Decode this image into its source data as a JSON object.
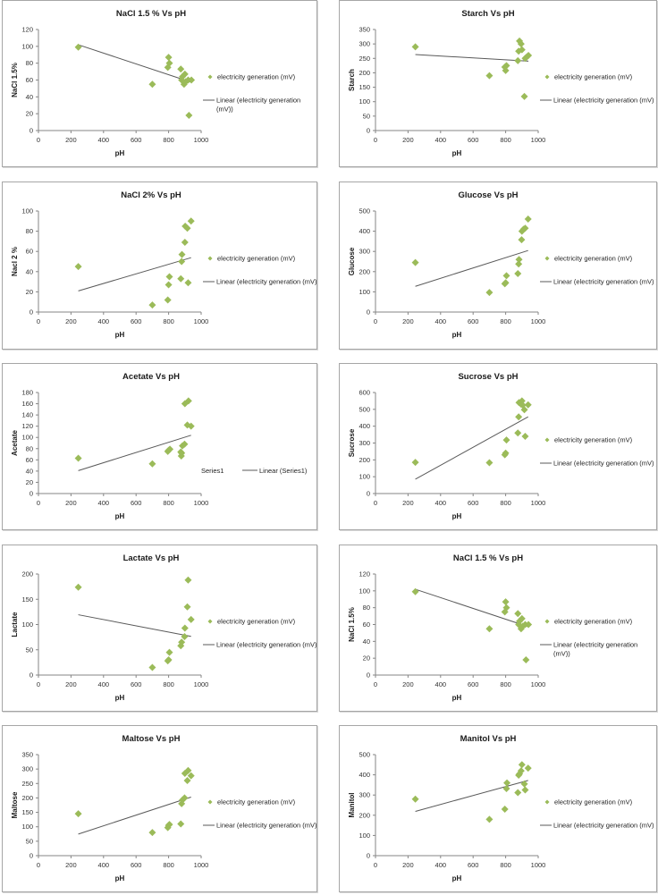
{
  "colors": {
    "marker": "#9bbb59",
    "trendline": "#595959",
    "axis": "#868686"
  },
  "chart_data": [
    {
      "id": "nacl15-a",
      "type": "scatter",
      "title": "NaCl 1.5 % Vs pH",
      "xlabel": "pH",
      "ylabel": "NaCl 1.5%",
      "xlim": [
        0,
        1000
      ],
      "ylim": [
        0,
        120
      ],
      "xticks": [
        0,
        200,
        400,
        600,
        800,
        1000
      ],
      "yticks": [
        0,
        20,
        40,
        60,
        80,
        100,
        120
      ],
      "grid": false,
      "legend_position": "right",
      "legend": [
        "electricity generation (mV)",
        "Linear (electricity generation (mV))"
      ],
      "legend_wrap": true,
      "series": [
        {
          "name": "electricity generation (mV)",
          "x": [
            245,
            700,
            795,
            800,
            805,
            875,
            880,
            885,
            895,
            900,
            905,
            920,
            925,
            940
          ],
          "y": [
            99,
            55,
            75,
            87,
            80,
            73,
            60,
            64,
            55,
            67,
            58,
            60,
            18,
            60
          ]
        }
      ],
      "trendline": "linear"
    },
    {
      "id": "starch",
      "type": "scatter",
      "title": "Starch Vs pH",
      "xlabel": "pH",
      "ylabel": "Starch",
      "xlim": [
        0,
        1000
      ],
      "ylim": [
        0,
        350
      ],
      "xticks": [
        0,
        200,
        400,
        600,
        800,
        1000
      ],
      "yticks": [
        0,
        50,
        100,
        150,
        200,
        250,
        300,
        350
      ],
      "grid": false,
      "legend_position": "right",
      "legend": [
        "electricity generation (mV)",
        "Linear (electricity generation (mV) )"
      ],
      "legend_wrap": false,
      "series": [
        {
          "name": "electricity generation (mV)",
          "x": [
            245,
            700,
            795,
            800,
            805,
            875,
            880,
            885,
            895,
            900,
            915,
            920,
            930,
            940
          ],
          "y": [
            290,
            190,
            220,
            208,
            225,
            242,
            275,
            310,
            300,
            280,
            118,
            250,
            255,
            260
          ]
        }
      ],
      "trendline": "linear"
    },
    {
      "id": "nacl2",
      "type": "scatter",
      "title": "NaCl 2% Vs pH",
      "xlabel": "pH",
      "ylabel": "Nacl  2 %",
      "xlim": [
        0,
        1000
      ],
      "ylim": [
        0,
        100
      ],
      "xticks": [
        0,
        200,
        400,
        600,
        800,
        1000
      ],
      "yticks": [
        0,
        20,
        40,
        60,
        80,
        100
      ],
      "grid": false,
      "legend_position": "right",
      "legend": [
        "electricity generation (mV)",
        "Linear (electricity generation (mV) )"
      ],
      "legend_wrap": false,
      "series": [
        {
          "name": "electricity generation (mV)",
          "x": [
            245,
            700,
            795,
            800,
            805,
            875,
            880,
            882,
            900,
            902,
            915,
            920,
            938
          ],
          "y": [
            45,
            7,
            12,
            27,
            35,
            33,
            50,
            57,
            69,
            85,
            83,
            29,
            90
          ]
        }
      ],
      "trendline": "linear"
    },
    {
      "id": "glucose",
      "type": "scatter",
      "title": "Glucose Vs pH",
      "xlabel": "pH",
      "ylabel": "Glucose",
      "xlim": [
        0,
        1000
      ],
      "ylim": [
        0,
        500
      ],
      "xticks": [
        0,
        200,
        400,
        600,
        800,
        1000
      ],
      "yticks": [
        0,
        100,
        200,
        300,
        400,
        500
      ],
      "grid": false,
      "legend_position": "right",
      "legend": [
        "electricity generation (mV)",
        "Linear (electricity generation (mV) )"
      ],
      "legend_wrap": false,
      "series": [
        {
          "name": "electricity generation (mV)",
          "x": [
            245,
            700,
            795,
            800,
            805,
            875,
            880,
            882,
            898,
            900,
            910,
            920,
            938
          ],
          "y": [
            245,
            97,
            140,
            145,
            180,
            190,
            238,
            260,
            358,
            400,
            410,
            415,
            460
          ]
        }
      ],
      "trendline": "linear"
    },
    {
      "id": "acetate",
      "type": "scatter",
      "title": "Acetate Vs pH",
      "xlabel": "pH",
      "ylabel": "Acetate",
      "xlim": [
        0,
        1000
      ],
      "ylim": [
        0,
        180
      ],
      "xticks": [
        0,
        200,
        400,
        600,
        800,
        1000
      ],
      "yticks": [
        0,
        20,
        40,
        60,
        80,
        100,
        120,
        140,
        160,
        180
      ],
      "grid": false,
      "legend_position": "right",
      "legend": [
        "Series1",
        "Linear (Series1)"
      ],
      "legend_wrap": false,
      "series": [
        {
          "name": "Series1",
          "x": [
            245,
            700,
            795,
            800,
            808,
            875,
            878,
            880,
            885,
            898,
            900,
            915,
            922,
            938
          ],
          "y": [
            63,
            53,
            75,
            77,
            79,
            74,
            67,
            72,
            85,
            88,
            160,
            122,
            165,
            120
          ]
        }
      ],
      "trendline": "linear"
    },
    {
      "id": "sucrose",
      "type": "scatter",
      "title": "Sucrose Vs pH",
      "xlabel": "pH",
      "ylabel": "Sucrose",
      "xlim": [
        0,
        1000
      ],
      "ylim": [
        0,
        600
      ],
      "xticks": [
        0,
        200,
        400,
        600,
        800,
        1000
      ],
      "yticks": [
        0,
        100,
        200,
        300,
        400,
        500,
        600
      ],
      "grid": false,
      "legend_position": "right",
      "legend": [
        "electricity generation (mV)",
        "Linear (electricity generation (mV) )"
      ],
      "legend_wrap": false,
      "series": [
        {
          "name": "electricity generation (mV)",
          "x": [
            245,
            700,
            795,
            800,
            805,
            875,
            880,
            882,
            895,
            900,
            905,
            915,
            920,
            938
          ],
          "y": [
            185,
            183,
            230,
            240,
            318,
            360,
            455,
            540,
            530,
            550,
            525,
            498,
            340,
            527
          ]
        }
      ],
      "trendline": "linear"
    },
    {
      "id": "lactate",
      "type": "scatter",
      "title": "Lactate Vs pH",
      "xlabel": "pH",
      "ylabel": "Lactate",
      "xlim": [
        0,
        1000
      ],
      "ylim": [
        0,
        200
      ],
      "xticks": [
        0,
        200,
        400,
        600,
        800,
        1000
      ],
      "yticks": [
        0,
        50,
        100,
        150,
        200
      ],
      "grid": false,
      "legend_position": "right",
      "legend": [
        "electricity generation (mV)",
        "Linear (electricity generation (mV) )"
      ],
      "legend_wrap": false,
      "series": [
        {
          "name": "electricity generation (mV)",
          "x": [
            245,
            700,
            795,
            800,
            805,
            875,
            880,
            898,
            900,
            915,
            920,
            938
          ],
          "y": [
            174,
            15,
            28,
            30,
            45,
            58,
            65,
            76,
            93,
            135,
            188,
            110
          ]
        }
      ],
      "trendline": "linear"
    },
    {
      "id": "nacl15-b",
      "type": "scatter",
      "title": "NaCl 1.5 % Vs pH",
      "xlabel": "pH",
      "ylabel": "NaCl 1.5%",
      "xlim": [
        0,
        1000
      ],
      "ylim": [
        0,
        120
      ],
      "xticks": [
        0,
        200,
        400,
        600,
        800,
        1000
      ],
      "yticks": [
        0,
        20,
        40,
        60,
        80,
        100,
        120
      ],
      "grid": false,
      "legend_position": "right",
      "legend": [
        "electricity generation (mV)",
        "Linear (electricity generation (mV))"
      ],
      "legend_wrap": true,
      "series": [
        {
          "name": "electricity generation (mV)",
          "x": [
            245,
            700,
            795,
            800,
            805,
            875,
            880,
            885,
            895,
            900,
            905,
            920,
            925,
            940
          ],
          "y": [
            99,
            55,
            75,
            87,
            80,
            73,
            60,
            64,
            55,
            67,
            58,
            60,
            18,
            60
          ]
        }
      ],
      "trendline": "linear"
    },
    {
      "id": "maltose",
      "type": "scatter",
      "title": "Maltose Vs pH",
      "xlabel": "pH",
      "ylabel": "Maltose",
      "xlim": [
        0,
        1000
      ],
      "ylim": [
        0,
        350
      ],
      "xticks": [
        0,
        200,
        400,
        600,
        800,
        1000
      ],
      "yticks": [
        0,
        50,
        100,
        150,
        200,
        250,
        300,
        350
      ],
      "grid": false,
      "legend_position": "right",
      "legend": [
        "electricity generation (mV)",
        "Linear (electricity generation (mV) )"
      ],
      "legend_wrap": false,
      "series": [
        {
          "name": "electricity generation (mV)",
          "x": [
            245,
            700,
            795,
            800,
            805,
            875,
            880,
            885,
            898,
            900,
            915,
            920,
            938
          ],
          "y": [
            145,
            80,
            97,
            105,
            108,
            110,
            180,
            193,
            200,
            285,
            260,
            295,
            277
          ]
        }
      ],
      "trendline": "linear"
    },
    {
      "id": "manitol",
      "type": "scatter",
      "title": "Manitol Vs pH",
      "xlabel": "pH",
      "ylabel": "Manitol",
      "xlim": [
        0,
        1000
      ],
      "ylim": [
        0,
        500
      ],
      "xticks": [
        0,
        200,
        400,
        600,
        800,
        1000
      ],
      "yticks": [
        0,
        100,
        200,
        300,
        400,
        500
      ],
      "grid": false,
      "legend_position": "right",
      "legend": [
        "electricity generation (mV)",
        "Linear (electricity generation (mV) )"
      ],
      "legend_wrap": false,
      "series": [
        {
          "name": "electricity generation (mV)",
          "x": [
            245,
            700,
            795,
            805,
            808,
            875,
            880,
            885,
            895,
            900,
            915,
            920,
            938
          ],
          "y": [
            280,
            180,
            230,
            332,
            360,
            312,
            398,
            405,
            420,
            450,
            355,
            325,
            433
          ]
        }
      ],
      "trendline": "linear"
    }
  ]
}
